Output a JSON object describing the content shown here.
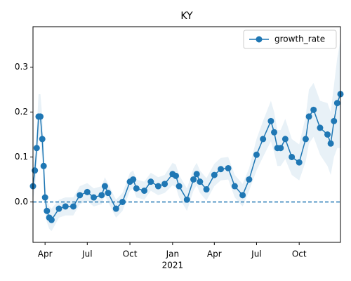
{
  "chart_data": {
    "type": "line",
    "title": "KY",
    "x": [
      "2020-03-06",
      "2020-03-10",
      "2020-03-14",
      "2020-03-18",
      "2020-03-22",
      "2020-03-26",
      "2020-03-29",
      "2020-04-01",
      "2020-04-05",
      "2020-04-10",
      "2020-04-15",
      "2020-05-01",
      "2020-05-15",
      "2020-06-01",
      "2020-06-15",
      "2020-07-01",
      "2020-07-15",
      "2020-08-01",
      "2020-08-08",
      "2020-08-15",
      "2020-09-01",
      "2020-09-15",
      "2020-10-01",
      "2020-10-08",
      "2020-10-15",
      "2020-11-01",
      "2020-11-15",
      "2020-12-01",
      "2020-12-15",
      "2021-01-01",
      "2021-01-08",
      "2021-01-15",
      "2021-02-01",
      "2021-02-15",
      "2021-02-22",
      "2021-03-01",
      "2021-03-15",
      "2021-04-01",
      "2021-04-15",
      "2021-05-01",
      "2021-05-15",
      "2021-06-01",
      "2021-06-15",
      "2021-07-01",
      "2021-07-15",
      "2021-08-01",
      "2021-08-08",
      "2021-08-15",
      "2021-08-22",
      "2021-09-01",
      "2021-09-15",
      "2021-10-01",
      "2021-10-15",
      "2021-10-22",
      "2021-11-01",
      "2021-11-15",
      "2021-12-01",
      "2021-12-08",
      "2021-12-15",
      "2021-12-22",
      "2021-12-29"
    ],
    "series": [
      {
        "name": "growth_rate",
        "color": "#1f77b4",
        "values": [
          0.035,
          0.07,
          0.12,
          0.19,
          0.19,
          0.14,
          0.08,
          0.01,
          -0.02,
          -0.035,
          -0.04,
          -0.015,
          -0.01,
          -0.01,
          0.015,
          0.022,
          0.01,
          0.015,
          0.035,
          0.02,
          -0.015,
          0.0,
          0.045,
          0.05,
          0.03,
          0.025,
          0.045,
          0.035,
          0.04,
          0.062,
          0.058,
          0.035,
          0.005,
          0.05,
          0.062,
          0.045,
          0.028,
          0.06,
          0.073,
          0.075,
          0.035,
          0.015,
          0.05,
          0.105,
          0.14,
          0.18,
          0.155,
          0.12,
          0.12,
          0.14,
          0.1,
          0.088,
          0.14,
          0.19,
          0.205,
          0.165,
          0.15,
          0.13,
          0.18,
          0.22,
          0.24
        ],
        "errors": [
          0.03,
          0.04,
          0.04,
          0.05,
          0.05,
          0.05,
          0.04,
          0.03,
          0.025,
          0.025,
          0.025,
          0.02,
          0.02,
          0.02,
          0.02,
          0.02,
          0.02,
          0.02,
          0.02,
          0.02,
          0.02,
          0.02,
          0.02,
          0.02,
          0.02,
          0.02,
          0.02,
          0.02,
          0.02,
          0.025,
          0.025,
          0.025,
          0.025,
          0.025,
          0.025,
          0.025,
          0.025,
          0.025,
          0.025,
          0.025,
          0.025,
          0.025,
          0.025,
          0.035,
          0.04,
          0.045,
          0.045,
          0.04,
          0.04,
          0.045,
          0.04,
          0.04,
          0.05,
          0.06,
          0.06,
          0.06,
          0.07,
          0.07,
          0.08,
          0.1,
          0.12
        ]
      }
    ],
    "xlim": [
      "2020-03-06",
      "2021-12-29"
    ],
    "xticks": [
      {
        "value": "2020-04-01",
        "label": "Apr"
      },
      {
        "value": "2020-07-01",
        "label": "Jul"
      },
      {
        "value": "2020-10-01",
        "label": "Oct"
      },
      {
        "value": "2021-01-01",
        "label": "Jan"
      },
      {
        "value": "2021-04-01",
        "label": "Apr"
      },
      {
        "value": "2021-07-01",
        "label": "Jul"
      },
      {
        "value": "2021-10-01",
        "label": "Oct"
      }
    ],
    "x_year_label": {
      "value": "2021-01-01",
      "label": "2021"
    },
    "ylim": [
      -0.09,
      0.39
    ],
    "yticks": [
      {
        "value": 0,
        "label": "0.0"
      },
      {
        "value": 0.1,
        "label": "0.1"
      },
      {
        "value": 0.2,
        "label": "0.2"
      },
      {
        "value": 0.3,
        "label": "0.3"
      }
    ],
    "hline": 0,
    "legend": "upper right"
  }
}
